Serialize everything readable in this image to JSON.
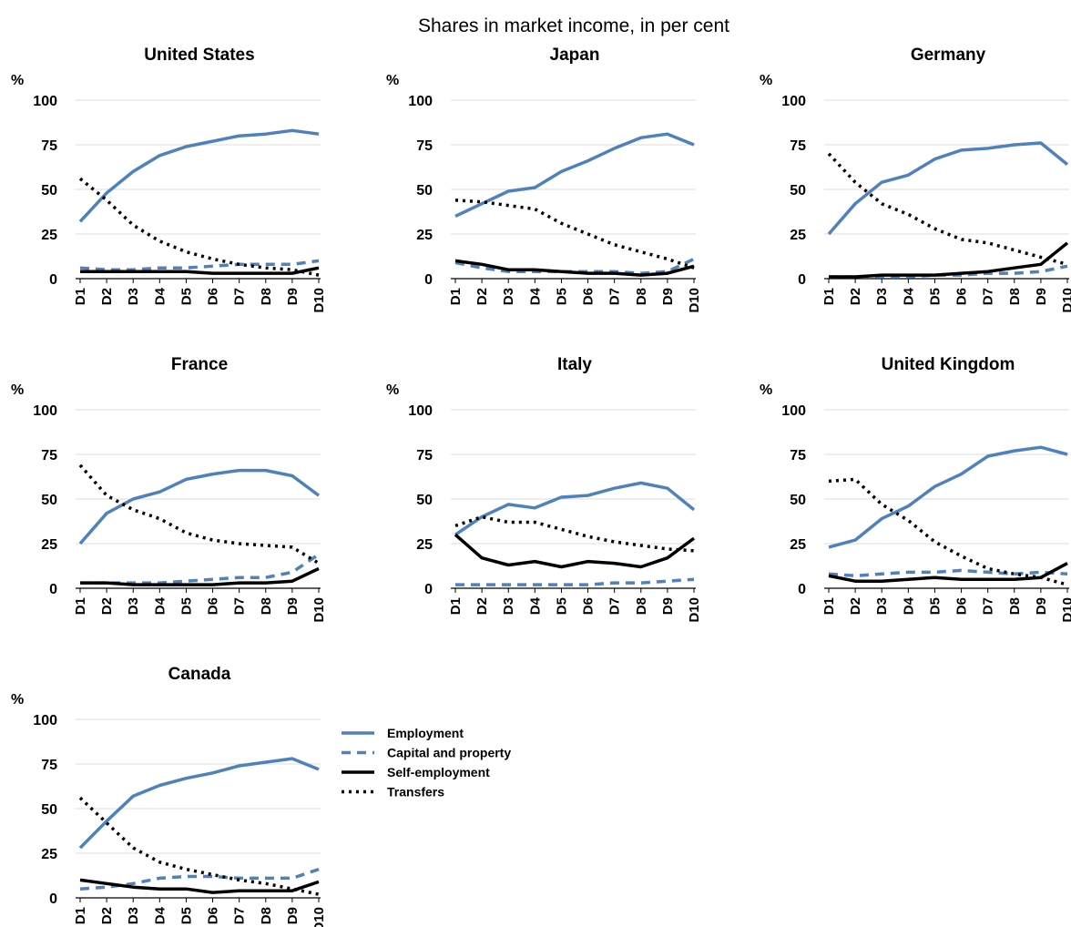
{
  "chart_data": {
    "type": "line",
    "title": "Shares in market income, in per cent",
    "ylabel": "%",
    "ylim": [
      0,
      100
    ],
    "yticks": [
      0,
      25,
      50,
      75,
      100
    ],
    "categories": [
      "D1",
      "D2",
      "D3",
      "D4",
      "D5",
      "D6",
      "D7",
      "D8",
      "D9",
      "D10"
    ],
    "grid": "horizontal",
    "legend": {
      "placement": "right of the Canada panel",
      "entries": [
        {
          "name": "Employment",
          "color": "#4f81bd",
          "style": "solid"
        },
        {
          "name": "Capital and property",
          "color": "#4f81bd",
          "style": "dashed"
        },
        {
          "name": "Self-employment",
          "color": "#000000",
          "style": "solid"
        },
        {
          "name": "Transfers",
          "color": "#000000",
          "style": "dotted"
        }
      ]
    },
    "panels": [
      {
        "title": "United States",
        "series": [
          {
            "name": "Employment",
            "values": [
              32,
              48,
              60,
              69,
              74,
              77,
              80,
              81,
              83,
              81
            ]
          },
          {
            "name": "Capital and property",
            "values": [
              6,
              5,
              5,
              6,
              6,
              7,
              8,
              8,
              8,
              10
            ]
          },
          {
            "name": "Self-employment",
            "values": [
              4,
              4,
              4,
              4,
              4,
              3,
              3,
              3,
              3,
              6
            ]
          },
          {
            "name": "Transfers",
            "values": [
              56,
              44,
              30,
              21,
              15,
              11,
              8,
              6,
              5,
              2
            ]
          }
        ]
      },
      {
        "title": "Japan",
        "series": [
          {
            "name": "Employment",
            "values": [
              35,
              42,
              49,
              51,
              60,
              66,
              73,
              79,
              81,
              75
            ]
          },
          {
            "name": "Capital and property",
            "values": [
              9,
              6,
              4,
              4,
              4,
              4,
              4,
              3,
              4,
              11
            ]
          },
          {
            "name": "Self-employment",
            "values": [
              10,
              8,
              5,
              5,
              4,
              3,
              3,
              2,
              3,
              7
            ]
          },
          {
            "name": "Transfers",
            "values": [
              44,
              43,
              41,
              39,
              31,
              25,
              19,
              15,
              11,
              6
            ]
          }
        ]
      },
      {
        "title": "Germany",
        "series": [
          {
            "name": "Employment",
            "values": [
              25,
              42,
              54,
              58,
              67,
              72,
              73,
              75,
              76,
              64
            ]
          },
          {
            "name": "Capital and property",
            "values": [
              1,
              1,
              1,
              1,
              2,
              2,
              3,
              3,
              4,
              7
            ]
          },
          {
            "name": "Self-employment",
            "values": [
              1,
              1,
              2,
              2,
              2,
              3,
              4,
              6,
              8,
              20
            ]
          },
          {
            "name": "Transfers",
            "values": [
              70,
              54,
              42,
              36,
              28,
              22,
              20,
              16,
              12,
              8
            ]
          }
        ]
      },
      {
        "title": "France",
        "series": [
          {
            "name": "Employment",
            "values": [
              25,
              42,
              50,
              54,
              61,
              64,
              66,
              66,
              63,
              52
            ]
          },
          {
            "name": "Capital and property",
            "values": [
              3,
              3,
              3,
              3,
              4,
              5,
              6,
              6,
              9,
              19
            ]
          },
          {
            "name": "Self-employment",
            "values": [
              3,
              3,
              2,
              2,
              2,
              2,
              3,
              3,
              4,
              11
            ]
          },
          {
            "name": "Transfers",
            "values": [
              69,
              52,
              44,
              39,
              31,
              27,
              25,
              24,
              23,
              14
            ]
          }
        ]
      },
      {
        "title": "Italy",
        "series": [
          {
            "name": "Employment",
            "values": [
              30,
              40,
              47,
              45,
              51,
              52,
              56,
              59,
              56,
              44
            ]
          },
          {
            "name": "Capital and property",
            "values": [
              2,
              2,
              2,
              2,
              2,
              2,
              3,
              3,
              4,
              5
            ]
          },
          {
            "name": "Self-employment",
            "values": [
              30,
              17,
              13,
              15,
              12,
              15,
              14,
              12,
              17,
              28
            ]
          },
          {
            "name": "Transfers",
            "values": [
              35,
              40,
              37,
              37,
              33,
              29,
              26,
              24,
              22,
              21
            ]
          }
        ]
      },
      {
        "title": "United Kingdom",
        "series": [
          {
            "name": "Employment",
            "values": [
              23,
              27,
              39,
              46,
              57,
              64,
              74,
              77,
              79,
              75
            ]
          },
          {
            "name": "Capital and property",
            "values": [
              8,
              7,
              8,
              9,
              9,
              10,
              9,
              8,
              9,
              8
            ]
          },
          {
            "name": "Self-employment",
            "values": [
              7,
              4,
              4,
              5,
              6,
              5,
              5,
              5,
              6,
              14
            ]
          },
          {
            "name": "Transfers",
            "values": [
              60,
              61,
              47,
              38,
              26,
              18,
              11,
              8,
              6,
              2
            ]
          }
        ]
      },
      {
        "title": "Canada",
        "series": [
          {
            "name": "Employment",
            "values": [
              28,
              43,
              57,
              63,
              67,
              70,
              74,
              76,
              78,
              72
            ]
          },
          {
            "name": "Capital and property",
            "values": [
              5,
              6,
              8,
              11,
              12,
              12,
              11,
              11,
              11,
              16
            ]
          },
          {
            "name": "Self-employment",
            "values": [
              10,
              8,
              6,
              5,
              5,
              3,
              4,
              4,
              4,
              9
            ]
          },
          {
            "name": "Transfers",
            "values": [
              56,
              42,
              28,
              20,
              16,
              13,
              10,
              8,
              5,
              2
            ]
          }
        ]
      }
    ]
  }
}
